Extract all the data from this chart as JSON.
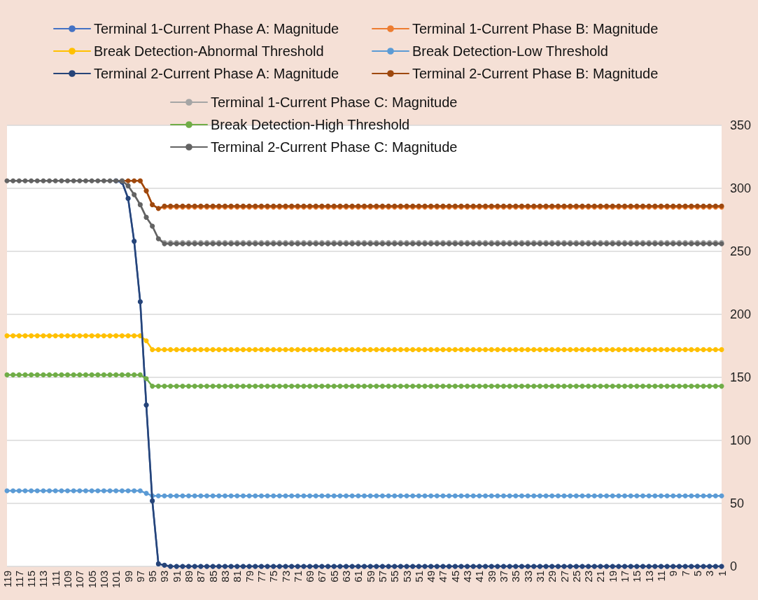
{
  "chart_data": {
    "type": "line",
    "categories": [
      "119",
      null,
      "117",
      null,
      "115",
      null,
      "113",
      null,
      "111",
      null,
      "109",
      null,
      "107",
      null,
      "105",
      null,
      "103",
      null,
      "101",
      null,
      "99",
      null,
      "97",
      null,
      "95",
      null,
      "93",
      null,
      "91",
      null,
      "89",
      null,
      "87",
      null,
      "85",
      null,
      "83",
      null,
      "81",
      null,
      "79",
      null,
      "77",
      null,
      "75",
      null,
      "73",
      null,
      "71",
      null,
      "69",
      null,
      "67",
      null,
      "65",
      null,
      "63",
      null,
      "61",
      null,
      "59",
      null,
      "57",
      null,
      "55",
      null,
      "53",
      null,
      "51",
      null,
      "49",
      null,
      "47",
      null,
      "45",
      null,
      "43",
      null,
      "41",
      null,
      "39",
      null,
      "37",
      null,
      "35",
      null,
      "33",
      null,
      "31",
      null,
      "29",
      null,
      "27",
      null,
      "25",
      null,
      "23",
      null,
      "21",
      null,
      "19",
      null,
      "17",
      null,
      "15",
      null,
      "13",
      null,
      "11",
      null,
      "9",
      null,
      "7",
      null,
      "5",
      null,
      "3",
      null,
      "1"
    ],
    "series": [
      {
        "name": "Terminal 1-Current Phase A: Magnitude",
        "color": "#4472c4",
        "values": [
          null,
          null,
          null,
          null,
          null,
          null,
          null,
          null,
          null,
          null,
          null,
          null,
          null,
          null,
          null,
          null,
          null,
          null,
          306,
          305,
          292,
          258,
          210,
          128,
          52,
          2,
          1,
          0,
          0,
          0,
          0,
          0,
          0,
          0,
          0,
          0,
          0,
          0,
          0,
          0,
          0,
          0,
          0,
          0,
          0,
          0,
          0,
          0,
          0,
          0,
          0,
          0,
          0,
          0,
          0,
          0,
          0,
          0,
          0,
          0,
          0,
          0,
          0,
          0,
          0,
          0,
          0,
          0,
          0,
          0,
          0,
          0,
          0,
          0,
          0,
          0,
          0,
          0,
          0,
          0,
          0,
          0,
          0,
          0,
          0,
          0,
          0,
          0,
          0,
          0,
          0,
          0,
          0,
          0,
          0,
          0,
          0,
          0,
          0,
          0,
          0,
          0,
          0,
          0,
          0,
          0,
          0,
          0,
          0,
          0,
          0,
          0,
          0,
          0,
          0,
          0,
          0,
          0,
          0
        ]
      },
      {
        "name": "Terminal 1-Current Phase B: Magnitude",
        "color": "#ed7d31",
        "values": [
          null,
          null,
          null,
          null,
          null,
          null,
          null,
          null,
          null,
          null,
          null,
          null,
          null,
          null,
          null,
          null,
          null,
          null,
          null,
          null,
          null,
          null,
          306,
          298,
          287,
          284,
          285,
          285,
          285,
          285,
          285,
          285,
          285,
          285,
          285,
          285,
          285,
          285,
          285,
          285,
          285,
          285,
          285,
          285,
          285,
          285,
          285,
          285,
          285,
          285,
          285,
          285,
          285,
          285,
          285,
          285,
          285,
          285,
          285,
          285,
          285,
          285,
          285,
          285,
          285,
          285,
          285,
          285,
          285,
          285,
          285,
          285,
          285,
          285,
          285,
          285,
          285,
          285,
          285,
          285,
          285,
          285,
          285,
          285,
          285,
          285,
          285,
          285,
          285,
          285,
          285,
          285,
          285,
          285,
          285,
          285,
          285,
          285,
          285,
          285,
          285,
          285,
          285,
          285,
          285,
          285,
          285,
          285,
          285,
          285,
          285,
          285,
          285,
          285,
          285,
          285,
          285,
          285,
          285
        ]
      },
      {
        "name": "Break Detection-Abnormal Threshold",
        "color": "#ffc000",
        "values": [
          183,
          183,
          183,
          183,
          183,
          183,
          183,
          183,
          183,
          183,
          183,
          183,
          183,
          183,
          183,
          183,
          183,
          183,
          183,
          183,
          183,
          183,
          183,
          179,
          172,
          172,
          172,
          172,
          172,
          172,
          172,
          172,
          172,
          172,
          172,
          172,
          172,
          172,
          172,
          172,
          172,
          172,
          172,
          172,
          172,
          172,
          172,
          172,
          172,
          172,
          172,
          172,
          172,
          172,
          172,
          172,
          172,
          172,
          172,
          172,
          172,
          172,
          172,
          172,
          172,
          172,
          172,
          172,
          172,
          172,
          172,
          172,
          172,
          172,
          172,
          172,
          172,
          172,
          172,
          172,
          172,
          172,
          172,
          172,
          172,
          172,
          172,
          172,
          172,
          172,
          172,
          172,
          172,
          172,
          172,
          172,
          172,
          172,
          172,
          172,
          172,
          172,
          172,
          172,
          172,
          172,
          172,
          172,
          172,
          172,
          172,
          172,
          172,
          172,
          172,
          172,
          172,
          172,
          172
        ]
      },
      {
        "name": "Break Detection-Low Threshold",
        "color": "#5b9bd5",
        "values": [
          60,
          60,
          60,
          60,
          60,
          60,
          60,
          60,
          60,
          60,
          60,
          60,
          60,
          60,
          60,
          60,
          60,
          60,
          60,
          60,
          60,
          60,
          60,
          58,
          56,
          56,
          56,
          56,
          56,
          56,
          56,
          56,
          56,
          56,
          56,
          56,
          56,
          56,
          56,
          56,
          56,
          56,
          56,
          56,
          56,
          56,
          56,
          56,
          56,
          56,
          56,
          56,
          56,
          56,
          56,
          56,
          56,
          56,
          56,
          56,
          56,
          56,
          56,
          56,
          56,
          56,
          56,
          56,
          56,
          56,
          56,
          56,
          56,
          56,
          56,
          56,
          56,
          56,
          56,
          56,
          56,
          56,
          56,
          56,
          56,
          56,
          56,
          56,
          56,
          56,
          56,
          56,
          56,
          56,
          56,
          56,
          56,
          56,
          56,
          56,
          56,
          56,
          56,
          56,
          56,
          56,
          56,
          56,
          56,
          56,
          56,
          56,
          56,
          56,
          56,
          56,
          56,
          56,
          56
        ]
      },
      {
        "name": "Terminal 2-Current Phase A: Magnitude",
        "color": "#264478",
        "values": [
          null,
          null,
          null,
          null,
          null,
          null,
          null,
          null,
          null,
          null,
          null,
          null,
          null,
          null,
          null,
          null,
          null,
          null,
          306,
          305,
          292,
          258,
          210,
          128,
          52,
          2,
          1,
          0,
          0,
          0,
          0,
          0,
          0,
          0,
          0,
          0,
          0,
          0,
          0,
          0,
          0,
          0,
          0,
          0,
          0,
          0,
          0,
          0,
          0,
          0,
          0,
          0,
          0,
          0,
          0,
          0,
          0,
          0,
          0,
          0,
          0,
          0,
          0,
          0,
          0,
          0,
          0,
          0,
          0,
          0,
          0,
          0,
          0,
          0,
          0,
          0,
          0,
          0,
          0,
          0,
          0,
          0,
          0,
          0,
          0,
          0,
          0,
          0,
          0,
          0,
          0,
          0,
          0,
          0,
          0,
          0,
          0,
          0,
          0,
          0,
          0,
          0,
          0,
          0,
          0,
          0,
          0,
          0,
          0,
          0,
          0,
          0,
          0,
          0,
          0,
          0,
          0,
          0,
          0
        ]
      },
      {
        "name": "Terminal 2-Current Phase B: Magnitude",
        "color": "#9e480e",
        "values": [
          null,
          null,
          null,
          null,
          null,
          null,
          null,
          null,
          null,
          null,
          null,
          null,
          null,
          null,
          null,
          null,
          null,
          null,
          null,
          306,
          306,
          306,
          306,
          298,
          287,
          284,
          286,
          286,
          286,
          286,
          286,
          286,
          286,
          286,
          286,
          286,
          286,
          286,
          286,
          286,
          286,
          286,
          286,
          286,
          286,
          286,
          286,
          286,
          286,
          286,
          286,
          286,
          286,
          286,
          286,
          286,
          286,
          286,
          286,
          286,
          286,
          286,
          286,
          286,
          286,
          286,
          286,
          286,
          286,
          286,
          286,
          286,
          286,
          286,
          286,
          286,
          286,
          286,
          286,
          286,
          286,
          286,
          286,
          286,
          286,
          286,
          286,
          286,
          286,
          286,
          286,
          286,
          286,
          286,
          286,
          286,
          286,
          286,
          286,
          286,
          286,
          286,
          286,
          286,
          286,
          286,
          286,
          286,
          286,
          286,
          286,
          286,
          286,
          286,
          286,
          286,
          286,
          286,
          286
        ]
      },
      {
        "name": "Terminal 1-Current Phase C: Magnitude",
        "color": "#a5a5a5",
        "values": [
          null,
          null,
          null,
          null,
          null,
          null,
          null,
          null,
          null,
          null,
          null,
          null,
          null,
          null,
          null,
          null,
          null,
          null,
          null,
          306,
          302,
          295,
          287,
          277,
          270,
          260,
          257,
          257,
          257,
          257,
          257,
          257,
          257,
          257,
          257,
          257,
          257,
          257,
          257,
          257,
          257,
          257,
          257,
          257,
          257,
          257,
          257,
          257,
          257,
          257,
          257,
          257,
          257,
          257,
          257,
          257,
          257,
          257,
          257,
          257,
          257,
          257,
          257,
          257,
          257,
          257,
          257,
          257,
          257,
          257,
          257,
          257,
          257,
          257,
          257,
          257,
          257,
          257,
          257,
          257,
          257,
          257,
          257,
          257,
          257,
          257,
          257,
          257,
          257,
          257,
          257,
          257,
          257,
          257,
          257,
          257,
          257,
          257,
          257,
          257,
          257,
          257,
          257,
          257,
          257,
          257,
          257,
          257,
          257,
          257,
          257,
          257,
          257,
          257,
          257,
          257,
          257,
          257,
          257
        ]
      },
      {
        "name": "Break Detection-High Threshold",
        "color": "#70ad47",
        "values": [
          152,
          152,
          152,
          152,
          152,
          152,
          152,
          152,
          152,
          152,
          152,
          152,
          152,
          152,
          152,
          152,
          152,
          152,
          152,
          152,
          152,
          152,
          152,
          149,
          143,
          143,
          143,
          143,
          143,
          143,
          143,
          143,
          143,
          143,
          143,
          143,
          143,
          143,
          143,
          143,
          143,
          143,
          143,
          143,
          143,
          143,
          143,
          143,
          143,
          143,
          143,
          143,
          143,
          143,
          143,
          143,
          143,
          143,
          143,
          143,
          143,
          143,
          143,
          143,
          143,
          143,
          143,
          143,
          143,
          143,
          143,
          143,
          143,
          143,
          143,
          143,
          143,
          143,
          143,
          143,
          143,
          143,
          143,
          143,
          143,
          143,
          143,
          143,
          143,
          143,
          143,
          143,
          143,
          143,
          143,
          143,
          143,
          143,
          143,
          143,
          143,
          143,
          143,
          143,
          143,
          143,
          143,
          143,
          143,
          143,
          143,
          143,
          143,
          143,
          143,
          143,
          143,
          143,
          143
        ]
      },
      {
        "name": "Terminal 2-Current Phase C: Magnitude",
        "color": "#636363",
        "values": [
          306,
          306,
          306,
          306,
          306,
          306,
          306,
          306,
          306,
          306,
          306,
          306,
          306,
          306,
          306,
          306,
          306,
          306,
          306,
          306,
          302,
          295,
          287,
          277,
          270,
          260,
          256,
          256,
          256,
          256,
          256,
          256,
          256,
          256,
          256,
          256,
          256,
          256,
          256,
          256,
          256,
          256,
          256,
          256,
          256,
          256,
          256,
          256,
          256,
          256,
          256,
          256,
          256,
          256,
          256,
          256,
          256,
          256,
          256,
          256,
          256,
          256,
          256,
          256,
          256,
          256,
          256,
          256,
          256,
          256,
          256,
          256,
          256,
          256,
          256,
          256,
          256,
          256,
          256,
          256,
          256,
          256,
          256,
          256,
          256,
          256,
          256,
          256,
          256,
          256,
          256,
          256,
          256,
          256,
          256,
          256,
          256,
          256,
          256,
          256,
          256,
          256,
          256,
          256,
          256,
          256,
          256,
          256,
          256,
          256,
          256,
          256,
          256,
          256,
          256,
          256,
          256,
          256,
          256
        ]
      }
    ],
    "ylim": [
      0,
      350
    ],
    "yticks": [
      0,
      50,
      100,
      150,
      200,
      250,
      300,
      350
    ],
    "grid": "y",
    "legend": "top",
    "marker": "circle",
    "line_style": "solid"
  }
}
